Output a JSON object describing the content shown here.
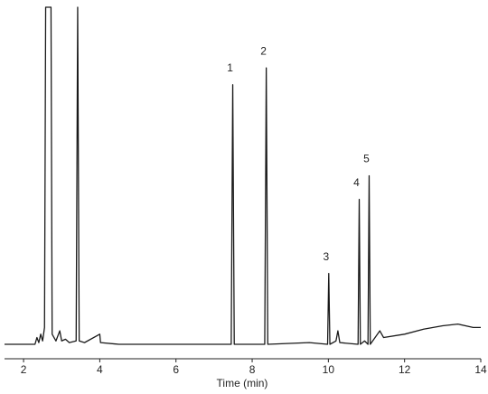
{
  "chart_data": {
    "type": "line",
    "x_label": "Time (min)",
    "x": [
      1.5,
      2.3,
      2.35,
      2.4,
      2.45,
      2.5,
      2.55,
      2.58,
      2.72,
      2.75,
      2.85,
      2.95,
      3.0,
      3.1,
      3.2,
      3.38,
      3.42,
      3.46,
      3.6,
      4.0,
      4.02,
      4.5,
      7.45,
      7.49,
      7.53,
      8.33,
      8.37,
      8.41,
      9.5,
      9.98,
      10.01,
      10.04,
      10.2,
      10.25,
      10.3,
      10.78,
      10.81,
      10.84,
      10.95,
      11.04,
      11.07,
      11.1,
      11.35,
      11.45,
      12,
      12.5,
      13,
      13.4,
      13.8,
      14
    ],
    "series": [
      {
        "color": "#1a1a1a",
        "values": [
          0,
          0,
          2,
          0.5,
          3,
          1,
          5,
          100,
          100,
          3,
          1,
          4,
          1,
          1.5,
          0.5,
          1,
          100,
          1,
          0.5,
          3,
          0.5,
          0,
          0,
          77,
          0,
          0,
          82,
          0,
          0.5,
          0,
          21,
          0,
          1,
          4,
          0.5,
          0,
          43,
          0,
          1,
          0,
          50,
          0,
          4,
          2,
          3,
          4.5,
          5.5,
          6,
          5,
          5
        ]
      }
    ],
    "annotations": [
      {
        "text": "1",
        "x": 7.49,
        "y": 77
      },
      {
        "text": "2",
        "x": 8.37,
        "y": 82
      },
      {
        "text": "3",
        "x": 10.01,
        "y": 21
      },
      {
        "text": "4",
        "x": 10.81,
        "y": 43
      },
      {
        "text": "5",
        "x": 11.07,
        "y": 50
      }
    ],
    "xlim": [
      1.5,
      14
    ],
    "xticks": [
      2,
      4,
      6,
      8,
      10,
      12,
      14
    ],
    "ylim": [
      0,
      100
    ]
  }
}
